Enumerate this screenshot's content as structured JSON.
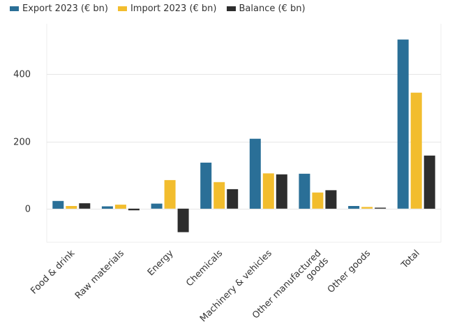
{
  "chart_data": {
    "type": "bar",
    "title": "",
    "xlabel": "",
    "ylabel": "",
    "categories": [
      [
        "Food & drink"
      ],
      [
        "Raw materials"
      ],
      [
        "Energy"
      ],
      [
        "Chemicals"
      ],
      [
        "Machinery & vehicles"
      ],
      [
        "Other manufactured",
        "goods"
      ],
      [
        "Other goods"
      ],
      [
        "Total"
      ]
    ],
    "series": [
      {
        "name": "Export 2023 (€ bn)",
        "color": "#2a6f97",
        "values": [
          23,
          7,
          15,
          137,
          208,
          104,
          8,
          503
        ]
      },
      {
        "name": "Import 2023 (€ bn)",
        "color": "#f2bd2e",
        "values": [
          8,
          12,
          85,
          79,
          105,
          48,
          5,
          345
        ]
      },
      {
        "name": "Balance (€ bn)",
        "color": "#2d2d2d",
        "values": [
          16,
          -5,
          -70,
          58,
          102,
          55,
          3,
          158
        ]
      }
    ],
    "ylim": [
      -100,
      550
    ],
    "yticks": [
      0,
      200,
      400
    ],
    "grid": true,
    "legend_position": "top-left"
  }
}
